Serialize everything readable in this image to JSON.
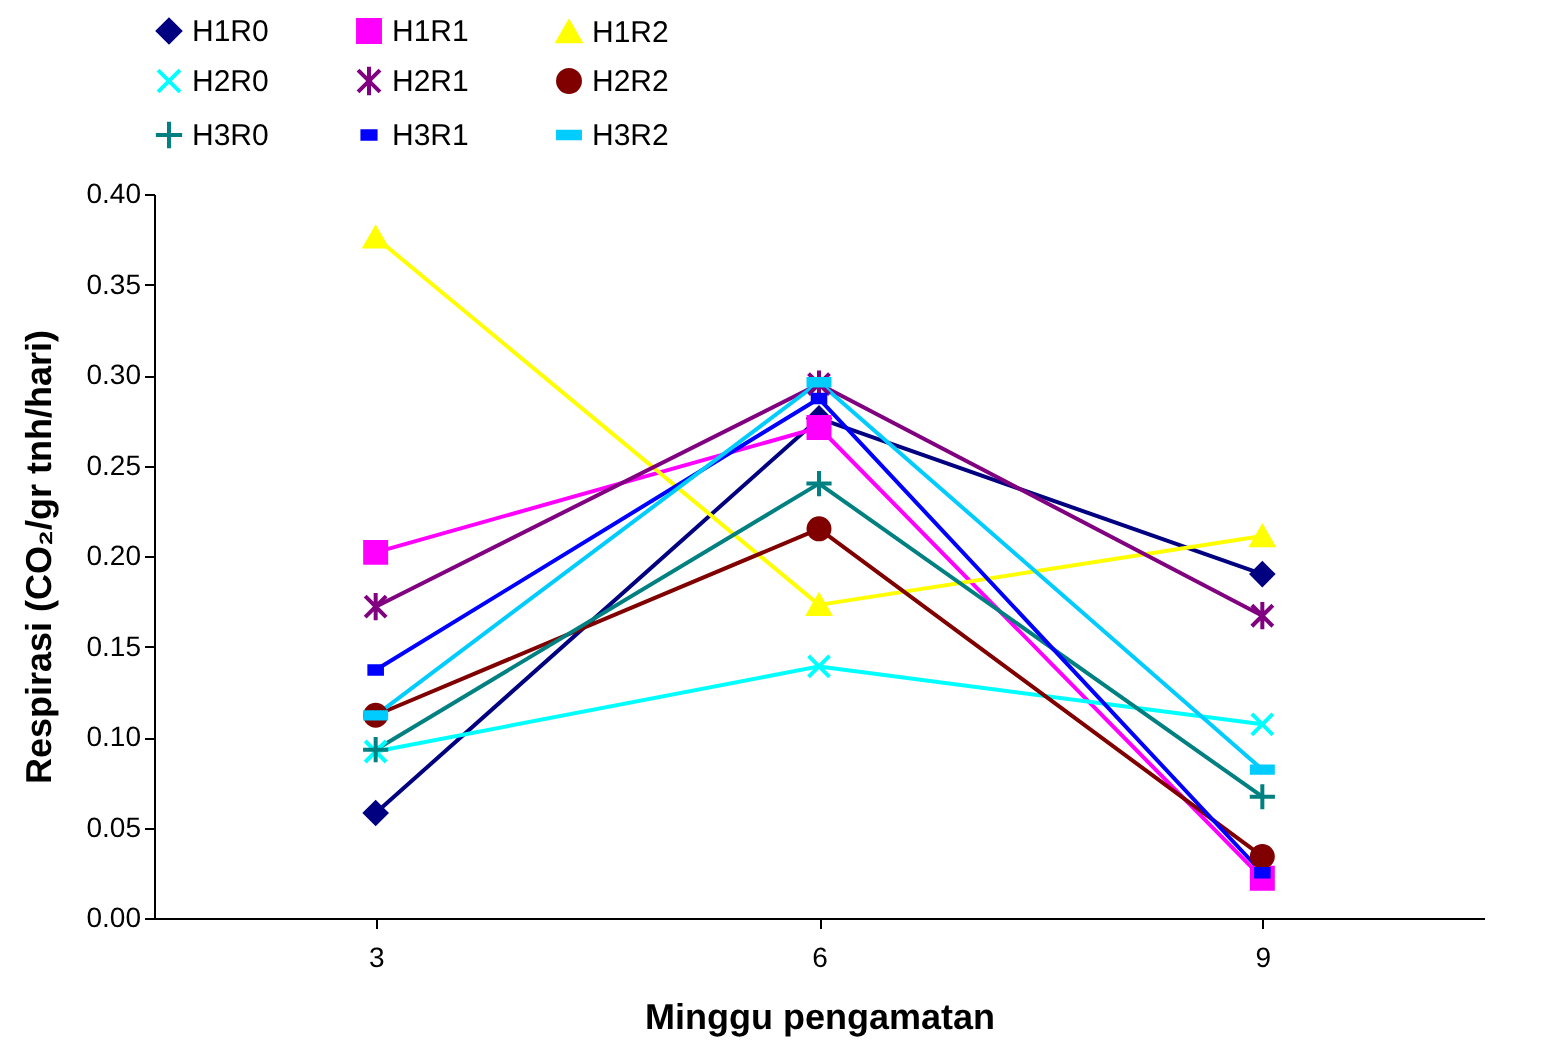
{
  "chart_data": {
    "type": "line",
    "xlabel": "Minggu pengamatan",
    "ylabel": "Respirasi (CO₂/gr tnh/hari)",
    "categories": [
      "3",
      "6",
      "9"
    ],
    "ylim": [
      0,
      0.4
    ],
    "yticks": [
      {
        "value": 0,
        "label": "0.00"
      },
      {
        "value": 0.05,
        "label": "0.05"
      },
      {
        "value": 0.1,
        "label": "0.10"
      },
      {
        "value": 0.15,
        "label": "0.15"
      },
      {
        "value": 0.2,
        "label": "0.20"
      },
      {
        "value": 0.25,
        "label": "0.25"
      },
      {
        "value": 0.3,
        "label": "0.30"
      },
      {
        "value": 0.35,
        "label": "0.35"
      },
      {
        "value": 0.4,
        "label": "0.40"
      }
    ],
    "grid": false,
    "legend": "top",
    "line_style": "solid",
    "series": [
      {
        "name": "H1R0",
        "color": "#000080",
        "marker": "diamond",
        "values": [
          0.058,
          0.276,
          0.19
        ]
      },
      {
        "name": "H1R1",
        "color": "#ff00ff",
        "marker": "square",
        "values": [
          0.202,
          0.271,
          0.022
        ]
      },
      {
        "name": "H1R2",
        "color": "#ffff00",
        "marker": "triangle",
        "values": [
          0.376,
          0.173,
          0.211
        ]
      },
      {
        "name": "H2R0",
        "color": "#00ffff",
        "marker": "cross",
        "values": [
          0.092,
          0.139,
          0.107
        ]
      },
      {
        "name": "H2R1",
        "color": "#800080",
        "marker": "cross",
        "values": [
          0.172,
          0.295,
          0.167
        ]
      },
      {
        "name": "H2R2",
        "color": "#800000",
        "marker": "circle",
        "values": [
          0.112,
          0.215,
          0.034
        ]
      },
      {
        "name": "H3R0",
        "color": "#008080",
        "marker": "plus",
        "values": [
          0.093,
          0.24,
          0.067
        ]
      },
      {
        "name": "H3R1",
        "color": "#0000ff",
        "marker": "square",
        "values": [
          0.137,
          0.287,
          0.025
        ]
      },
      {
        "name": "H3R2",
        "color": "#00ccff",
        "marker": "square",
        "values": [
          0.112,
          0.296,
          0.082
        ]
      }
    ]
  }
}
